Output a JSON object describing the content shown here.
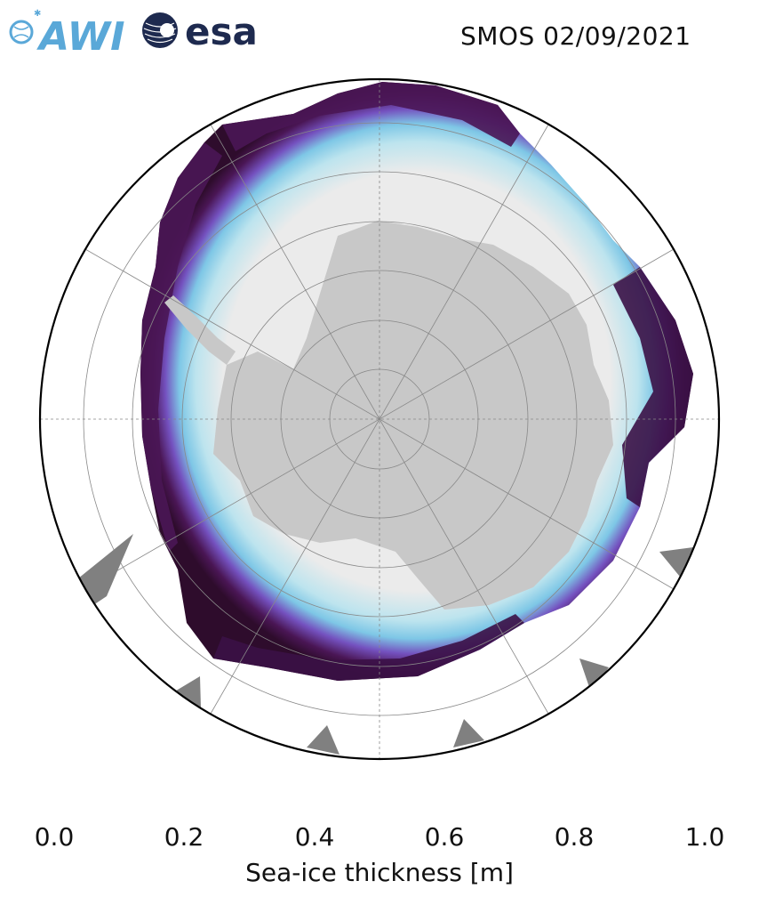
{
  "title": "SMOS 02/09/2021",
  "logos": [
    {
      "name": "awi-logo",
      "text": "AWI"
    },
    {
      "name": "esa-logo",
      "text": "esa"
    }
  ],
  "colorbar": {
    "label": "Sea-ice thickness [m]",
    "min": 0.0,
    "max": 1.0,
    "ticks": [
      "0.0",
      "0.2",
      "0.4",
      "0.6",
      "0.8",
      "1.0"
    ],
    "extend": "both",
    "colors": [
      "#2e0c2c",
      "#4a1655",
      "#61208a",
      "#7451bf",
      "#6d8ee0",
      "#7ec7e6",
      "#bde4ee",
      "#e9f0ef"
    ]
  },
  "map": {
    "projection": "south-polar-stereographic",
    "land_color": "#c8c8c8",
    "ocean_color": "#ffffff",
    "thick_ice_color": "#ebebeb",
    "grid": true
  }
}
